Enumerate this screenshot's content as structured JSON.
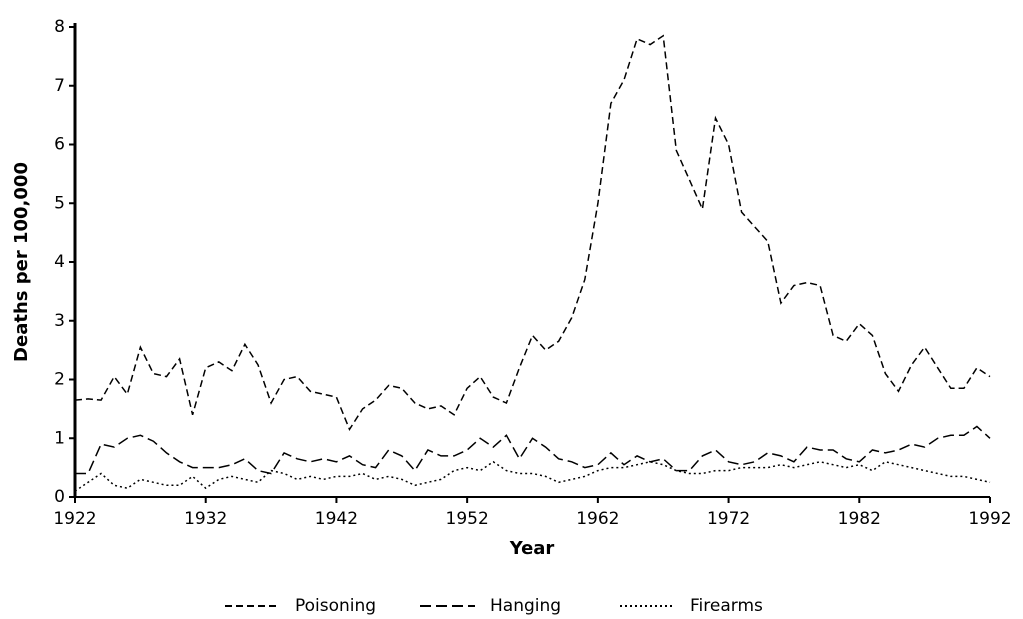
{
  "chart_data": {
    "type": "line",
    "x_label": "Year",
    "y_label": "Deaths per 100,000",
    "x": [
      1922,
      1923,
      1924,
      1925,
      1926,
      1927,
      1928,
      1929,
      1930,
      1931,
      1932,
      1933,
      1934,
      1935,
      1936,
      1937,
      1938,
      1939,
      1940,
      1941,
      1942,
      1943,
      1944,
      1945,
      1946,
      1947,
      1948,
      1949,
      1950,
      1951,
      1952,
      1953,
      1954,
      1955,
      1956,
      1957,
      1958,
      1959,
      1960,
      1961,
      1962,
      1963,
      1964,
      1965,
      1966,
      1967,
      1968,
      1969,
      1970,
      1971,
      1972,
      1973,
      1974,
      1975,
      1976,
      1977,
      1978,
      1979,
      1980,
      1981,
      1982,
      1983,
      1984,
      1985,
      1986,
      1987,
      1988,
      1989,
      1990,
      1991,
      1992
    ],
    "series": [
      {
        "name": "Poisoning",
        "color": "#000000",
        "dash": "dashed",
        "values": [
          1.65,
          1.67,
          1.65,
          2.05,
          1.75,
          2.55,
          2.1,
          2.05,
          2.35,
          1.4,
          2.2,
          2.3,
          2.15,
          2.6,
          2.25,
          1.6,
          2.0,
          2.05,
          1.8,
          1.75,
          1.7,
          1.15,
          1.5,
          1.65,
          1.9,
          1.85,
          1.6,
          1.5,
          1.55,
          1.4,
          1.85,
          2.05,
          1.7,
          1.6,
          2.2,
          2.75,
          2.5,
          2.65,
          3.05,
          3.7,
          5.0,
          6.7,
          7.1,
          7.8,
          7.7,
          7.85,
          5.9,
          5.4,
          4.9,
          6.45,
          6.0,
          4.85,
          4.6,
          4.35,
          3.3,
          3.6,
          3.65,
          3.6,
          2.75,
          2.65,
          2.95,
          2.75,
          2.1,
          1.8,
          2.25,
          2.55,
          2.2,
          1.85,
          1.85,
          2.2,
          2.05
        ]
      },
      {
        "name": "Hanging",
        "color": "#000000",
        "dash": "long-dashed",
        "values": [
          0.4,
          0.4,
          0.9,
          0.85,
          1.0,
          1.05,
          0.95,
          0.75,
          0.6,
          0.5,
          0.5,
          0.5,
          0.55,
          0.65,
          0.45,
          0.4,
          0.75,
          0.65,
          0.6,
          0.65,
          0.6,
          0.7,
          0.55,
          0.5,
          0.8,
          0.7,
          0.45,
          0.8,
          0.7,
          0.7,
          0.8,
          1.0,
          0.85,
          1.05,
          0.65,
          1.0,
          0.85,
          0.65,
          0.6,
          0.5,
          0.55,
          0.75,
          0.55,
          0.7,
          0.6,
          0.65,
          0.45,
          0.45,
          0.7,
          0.8,
          0.6,
          0.55,
          0.6,
          0.75,
          0.7,
          0.6,
          0.85,
          0.8,
          0.8,
          0.65,
          0.6,
          0.8,
          0.75,
          0.8,
          0.9,
          0.85,
          1.0,
          1.05,
          1.05,
          1.2,
          1.0
        ]
      },
      {
        "name": "Firearms",
        "color": "#000000",
        "dash": "dotted",
        "values": [
          0.1,
          0.25,
          0.4,
          0.2,
          0.15,
          0.3,
          0.25,
          0.2,
          0.2,
          0.35,
          0.15,
          0.3,
          0.35,
          0.3,
          0.25,
          0.45,
          0.4,
          0.3,
          0.35,
          0.3,
          0.35,
          0.35,
          0.4,
          0.3,
          0.35,
          0.3,
          0.2,
          0.25,
          0.3,
          0.45,
          0.5,
          0.45,
          0.6,
          0.45,
          0.4,
          0.4,
          0.35,
          0.25,
          0.3,
          0.35,
          0.45,
          0.5,
          0.5,
          0.55,
          0.6,
          0.55,
          0.45,
          0.4,
          0.4,
          0.45,
          0.45,
          0.5,
          0.5,
          0.5,
          0.55,
          0.5,
          0.55,
          0.6,
          0.55,
          0.5,
          0.55,
          0.45,
          0.6,
          0.55,
          0.5,
          0.45,
          0.4,
          0.35,
          0.35,
          0.3,
          0.25
        ]
      }
    ],
    "xlim": [
      1922,
      1992
    ],
    "xticks": [
      1922,
      1932,
      1942,
      1952,
      1962,
      1972,
      1982,
      1992
    ],
    "ylim": [
      0,
      8
    ],
    "yticks": [
      0,
      1,
      2,
      3,
      4,
      5,
      6,
      7,
      8
    ],
    "grid": false,
    "legend": "bottom"
  }
}
